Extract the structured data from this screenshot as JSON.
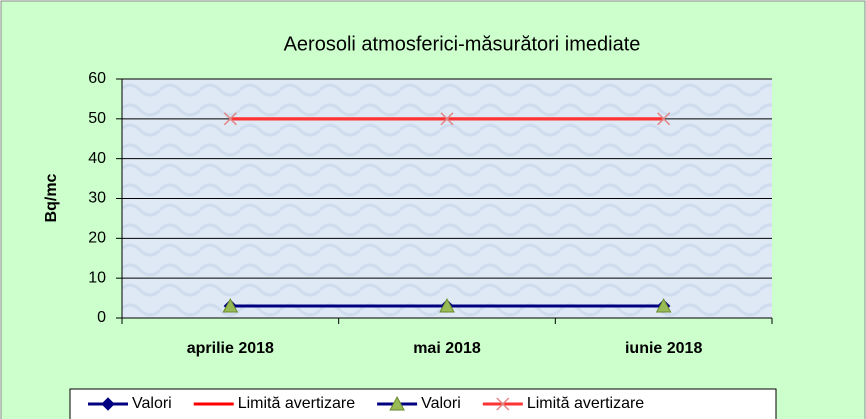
{
  "chart_data": {
    "type": "line",
    "title": "Aerosoli atmosferici-măsurători imediate",
    "y_label": "Bq/mc",
    "categories": [
      "aprilie 2018",
      "mai 2018",
      "iunie 2018"
    ],
    "series": [
      {
        "name": "Valori",
        "color": "#000080",
        "marker": "diamond",
        "marker_color": "#000080",
        "values": [
          3,
          3,
          3
        ]
      },
      {
        "name": "Limită avertizare",
        "color": "#ff0000",
        "marker": "none",
        "marker_color": "#ff0000",
        "values": [
          50,
          50,
          50
        ]
      },
      {
        "name": "Valori",
        "color": "#000080",
        "marker": "triangle",
        "marker_color": "#99bb55",
        "values": [
          3,
          3,
          3
        ]
      },
      {
        "name": "Limită avertizare",
        "color": "#ff3333",
        "marker": "x",
        "marker_color": "#e08888",
        "values": [
          50,
          50,
          50
        ]
      }
    ],
    "ylim": [
      0,
      60
    ],
    "yticks": [
      0,
      10,
      20,
      30,
      40,
      50,
      60
    ],
    "grid": true,
    "legend": "bottom"
  }
}
